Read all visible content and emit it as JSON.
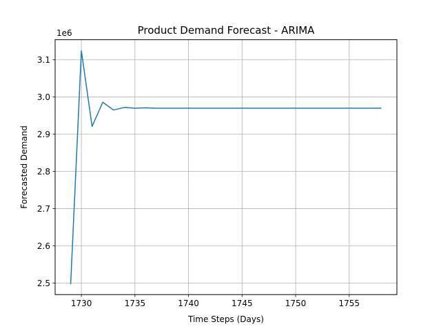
{
  "chart_data": {
    "type": "line",
    "title": "Product Demand Forecast - ARIMA",
    "xlabel": "Time Steps (Days)",
    "ylabel": "Forecasted Demand",
    "y_offset_label": "1e6",
    "xlim": [
      1727.55,
      1759.45
    ],
    "ylim": [
      2.469,
      3.154
    ],
    "x_ticks": [
      1730,
      1735,
      1740,
      1745,
      1750,
      1755
    ],
    "y_ticks": [
      2.5,
      2.6,
      2.7,
      2.8,
      2.9,
      3.0,
      3.1
    ],
    "y_tick_labels": [
      "2.5",
      "2.6",
      "2.7",
      "2.8",
      "2.9",
      "3.0",
      "3.1"
    ],
    "grid": true,
    "series": [
      {
        "color": "#1f77b4",
        "x": [
          1729,
          1730,
          1731,
          1732,
          1733,
          1734,
          1735,
          1736,
          1737,
          1738,
          1739,
          1740,
          1741,
          1742,
          1743,
          1744,
          1745,
          1746,
          1747,
          1748,
          1749,
          1750,
          1751,
          1752,
          1753,
          1754,
          1755,
          1756,
          1757,
          1758
        ],
        "values": [
          2.497,
          3.124,
          2.921,
          2.986,
          2.965,
          2.972,
          2.97,
          2.971,
          2.97,
          2.97,
          2.97,
          2.97,
          2.97,
          2.97,
          2.97,
          2.97,
          2.97,
          2.97,
          2.97,
          2.97,
          2.97,
          2.97,
          2.97,
          2.97,
          2.97,
          2.97,
          2.97,
          2.97,
          2.97,
          2.97
        ]
      }
    ]
  }
}
